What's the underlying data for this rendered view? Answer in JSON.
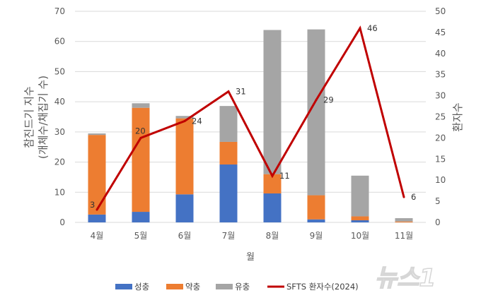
{
  "chart_data": {
    "type": "bar",
    "stacked": true,
    "categories": [
      "4월",
      "5월",
      "6월",
      "7월",
      "8월",
      "9월",
      "10월",
      "11월"
    ],
    "series": [
      {
        "name": "성충",
        "color": "#4472C4",
        "axis": "left",
        "values": [
          2.6,
          3.5,
          9.3,
          19.2,
          9.6,
          1.0,
          0.7,
          0.0
        ]
      },
      {
        "name": "약충",
        "color": "#ED7D31",
        "axis": "left",
        "values": [
          26.4,
          34.5,
          25.2,
          7.5,
          6.4,
          8.0,
          1.3,
          0.3
        ]
      },
      {
        "name": "유충",
        "color": "#A5A5A5",
        "axis": "left",
        "values": [
          0.5,
          1.5,
          0.8,
          11.9,
          47.8,
          55.0,
          13.5,
          1.1
        ]
      },
      {
        "name": "SFTS 환자수(2024)",
        "type": "line",
        "color": "#C00000",
        "axis": "right",
        "values": [
          3,
          20,
          24,
          31,
          11,
          29,
          46,
          6
        ]
      }
    ],
    "xlabel": "월",
    "ylabel": "참진드기 지수",
    "ylabel_sub": "(개체수/채집기 수)",
    "y2label": "환자수",
    "ylim": [
      0,
      70
    ],
    "yticks": [
      0,
      10,
      20,
      30,
      40,
      50,
      60,
      70
    ],
    "y2lim": [
      0,
      50
    ],
    "y2ticks": [
      0,
      5,
      10,
      15,
      20,
      25,
      30,
      35,
      40,
      45,
      50
    ],
    "grid": true,
    "legend": "bottom"
  },
  "watermark": "뉴스1"
}
